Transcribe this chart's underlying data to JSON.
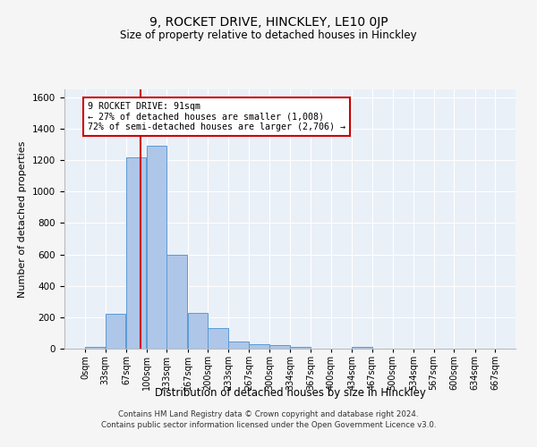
{
  "title": "9, ROCKET DRIVE, HINCKLEY, LE10 0JP",
  "subtitle": "Size of property relative to detached houses in Hinckley",
  "xlabel": "Distribution of detached houses by size in Hinckley",
  "ylabel": "Number of detached properties",
  "bar_color": "#aec6e8",
  "bar_edge_color": "#5b9bd5",
  "background_color": "#eaf0f8",
  "grid_color": "#ffffff",
  "bins": [
    0,
    33,
    67,
    100,
    133,
    167,
    200,
    233,
    267,
    300,
    334,
    367,
    400,
    434,
    467,
    500,
    534,
    567,
    600,
    634,
    667
  ],
  "values": [
    10,
    220,
    1220,
    1290,
    595,
    230,
    130,
    45,
    30,
    25,
    10,
    0,
    0,
    10,
    0,
    0,
    0,
    0,
    0,
    0
  ],
  "ylim": [
    0,
    1650
  ],
  "yticks": [
    0,
    200,
    400,
    600,
    800,
    1000,
    1200,
    1400,
    1600
  ],
  "property_size": 91,
  "annotation_title": "9 ROCKET DRIVE: 91sqm",
  "annotation_line1": "← 27% of detached houses are smaller (1,008)",
  "annotation_line2": "72% of semi-detached houses are larger (2,706) →",
  "red_line_color": "#cc0000",
  "annotation_box_color": "#ffffff",
  "annotation_box_edge": "#cc0000",
  "footer_line1": "Contains HM Land Registry data © Crown copyright and database right 2024.",
  "footer_line2": "Contains public sector information licensed under the Open Government Licence v3.0."
}
